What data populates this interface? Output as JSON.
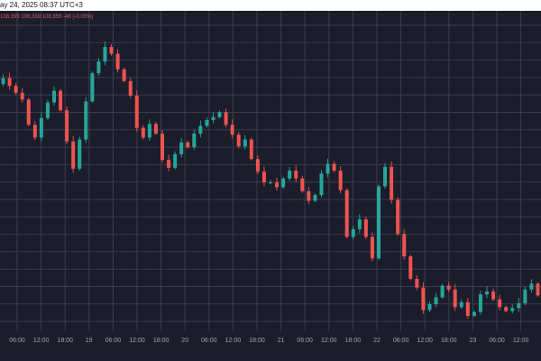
{
  "header": {
    "datetime": "ay 24, 2025 08:37 UTC+3",
    "ohlc": "108,399  108,339  108,356  -48 (-0.05%)"
  },
  "colors": {
    "background": "#1b1d2b",
    "grid": "#3a3d4e",
    "up": "#26a69a",
    "down": "#ef5350",
    "tick_label": "#a0a3ad",
    "ohlc_text": "#e05a62"
  },
  "chart_data": {
    "type": "candlestick",
    "title": "",
    "xlabel": "",
    "ylabel": "",
    "grid": true,
    "x_tick_labels": [
      "06:00",
      "12:00",
      "18:00",
      "19",
      "06:00",
      "12:00",
      "18:00",
      "20",
      "06:00",
      "12:00",
      "18:00",
      "21",
      "06:00",
      "12:00",
      "18:00",
      "22",
      "06:00",
      "12:00",
      "18:00",
      "23",
      "06:00",
      "12:00"
    ],
    "series": [
      {
        "values": [
          297,
          303,
          295,
          288,
          281,
          255,
          242,
          262,
          278,
          290,
          270,
          238,
          210,
          240,
          279,
          308,
          320,
          335,
          328,
          312,
          300,
          285,
          252,
          242,
          256,
          246,
          219,
          211,
          225,
          237,
          232,
          246,
          254,
          260,
          263,
          268,
          255,
          245,
          233,
          240,
          220,
          207,
          196,
          196,
          191,
          200,
          208,
          200,
          187,
          177,
          183,
          205,
          215,
          208,
          188,
          140,
          148,
          158,
          140,
          118,
          192,
          212,
          178,
          143,
          120,
          97,
          88,
          65,
          71,
          78,
          90,
          86,
          68,
          73,
          59,
          63,
          81,
          84,
          76,
          68,
          64,
          67,
          72,
          86,
          92,
          80
        ]
      }
    ]
  }
}
